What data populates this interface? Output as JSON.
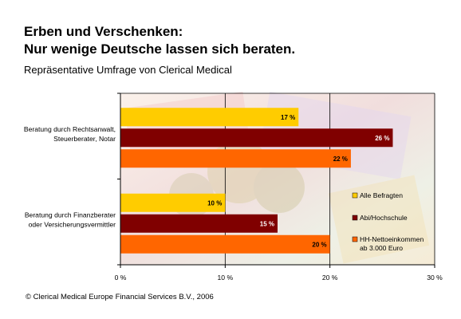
{
  "header": {
    "title_line1": "Erben und Verschenken:",
    "title_line2": "Nur wenige Deutsche lassen sich beraten.",
    "subtitle": "Repräsentative Umfrage von Clerical Medical"
  },
  "footer": "© Clerical Medical Europe Financial Services B.V., 2006",
  "colors": {
    "series": [
      "#ffcc00",
      "#800000",
      "#ff6600"
    ]
  },
  "chart_data": {
    "type": "bar",
    "orientation": "horizontal",
    "categories": [
      [
        "Beratung durch Rechtsanwalt,",
        "Steuerberater, Notar"
      ],
      [
        "Beratung durch Finanzberater",
        "oder Versicherungsvermittler"
      ]
    ],
    "series": [
      {
        "name": "Alle Befragten",
        "values": [
          17,
          10
        ],
        "labels": [
          "17 %",
          "10 %"
        ]
      },
      {
        "name": "Abi/Hochschule",
        "values": [
          26,
          15
        ],
        "labels": [
          "26 %",
          "15 %"
        ]
      },
      {
        "name": [
          "HH-Nettoeinkommen",
          "ab 3.000 Euro"
        ],
        "values": [
          22,
          20
        ],
        "labels": [
          "22 %",
          "20 %"
        ]
      }
    ],
    "xlim": [
      0,
      30
    ],
    "xticks": [
      0,
      10,
      20,
      30
    ],
    "xtick_labels": [
      "0 %",
      "10 %",
      "20 %",
      "30 %"
    ],
    "grid": true,
    "legend_position": "right"
  }
}
